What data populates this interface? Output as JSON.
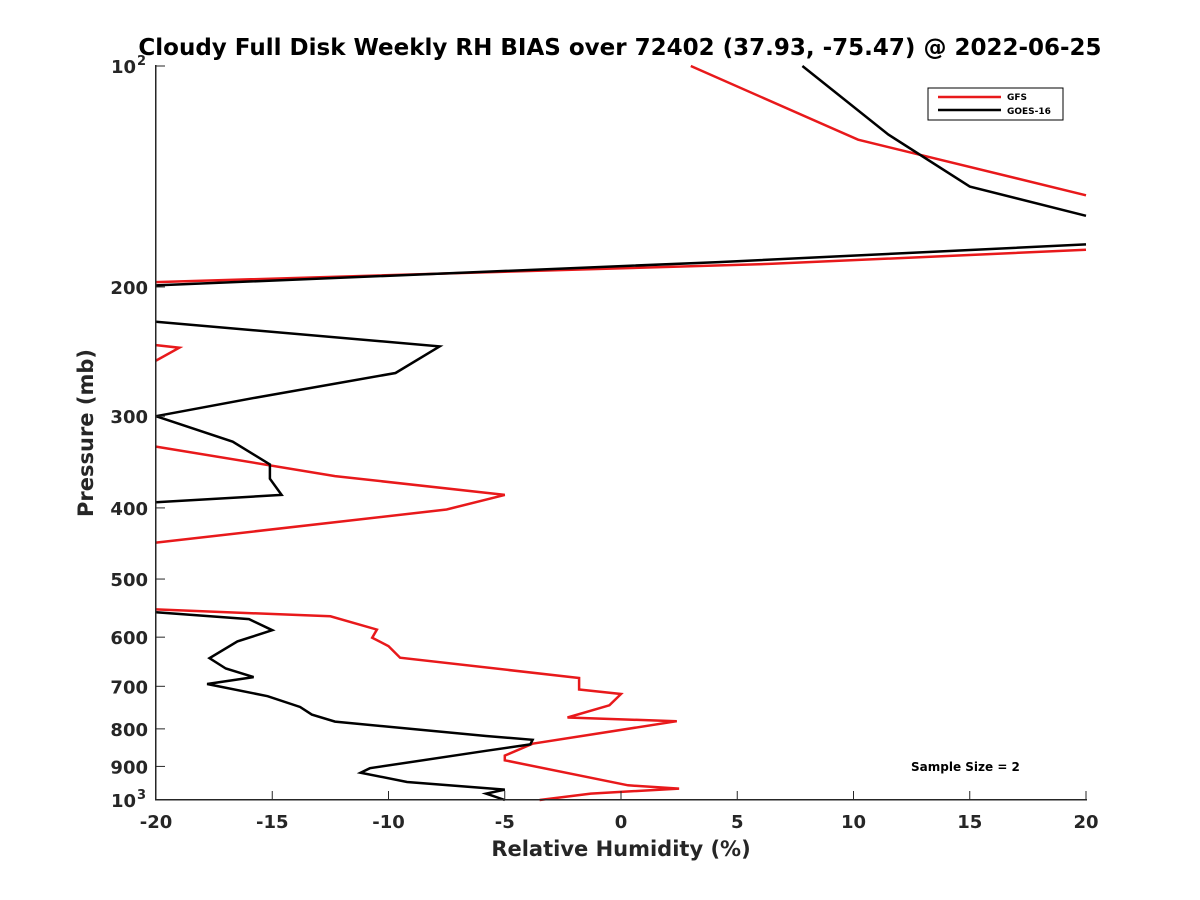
{
  "chart_data": {
    "type": "line",
    "title": "Cloudy Full Disk Weekly RH BIAS over 72402 (37.93, -75.47) @ 2022-06-25",
    "xlabel": "Relative Humidity (%)",
    "ylabel": "Pressure (mb)",
    "xlim": [
      -20,
      20
    ],
    "ylim": [
      100,
      1000
    ],
    "yscale": "log",
    "y_reversed": true,
    "x_ticks": [
      "-20",
      "-15",
      "-10",
      "-5",
      "0",
      "5",
      "10",
      "15",
      "20"
    ],
    "y_ticks": [
      {
        "value": 100,
        "base": "10",
        "exp": "2"
      },
      {
        "value": 200,
        "label": "200"
      },
      {
        "value": 300,
        "label": "300"
      },
      {
        "value": 400,
        "label": "400"
      },
      {
        "value": 500,
        "label": "500"
      },
      {
        "value": 600,
        "label": "600"
      },
      {
        "value": 700,
        "label": "700"
      },
      {
        "value": 800,
        "label": "800"
      },
      {
        "value": 900,
        "label": "900"
      },
      {
        "value": 1000,
        "base": "10",
        "exp": "3"
      }
    ],
    "legend_position": "top-right",
    "grid": false,
    "annotation": "Sample Size = 2",
    "series": [
      {
        "name": "GFS",
        "color": "#e8191b",
        "segments": [
          [
            [
              3,
              100
            ],
            [
              10.2,
              126
            ],
            [
              20,
              150
            ]
          ],
          [
            [
              20,
              178
            ],
            [
              6.5,
              186
            ],
            [
              -20,
              197
            ]
          ],
          [
            [
              -20,
              240
            ],
            [
              -19,
              242
            ],
            [
              -20,
              252
            ]
          ],
          [
            [
              -20,
              330
            ],
            [
              -12.3,
              362
            ],
            [
              -5,
              384
            ],
            [
              -7.5,
              402
            ],
            [
              -20,
              446
            ]
          ],
          [
            [
              -20,
              550
            ],
            [
              -12.5,
              562
            ],
            [
              -10.5,
              586
            ],
            [
              -10.7,
              601
            ],
            [
              -10,
              617
            ],
            [
              -9.5,
              640
            ],
            [
              -1.8,
              682
            ],
            [
              -1.8,
              707
            ],
            [
              0,
              717
            ],
            [
              -0.5,
              743
            ],
            [
              -2.3,
              772
            ],
            [
              2.4,
              781
            ],
            [
              -3.8,
              838
            ],
            [
              -5,
              870
            ],
            [
              -5,
              883
            ],
            [
              0.3,
              955
            ],
            [
              2.5,
              965
            ],
            [
              -1.3,
              980
            ],
            [
              -3.5,
              1000
            ]
          ]
        ]
      },
      {
        "name": "GOES-16",
        "color": "#000000",
        "segments": [
          [
            [
              7.8,
              100
            ],
            [
              11.5,
              124
            ],
            [
              15,
              146
            ],
            [
              20,
              160
            ]
          ],
          [
            [
              20,
              175
            ],
            [
              4.2,
              185
            ],
            [
              -20,
              199
            ]
          ],
          [
            [
              -20,
              223
            ],
            [
              -7.8,
              241
            ],
            [
              -9.7,
              262
            ],
            [
              -15.7,
              283
            ],
            [
              -20,
              300
            ]
          ],
          [
            [
              -20,
              300
            ],
            [
              -16.7,
              325
            ],
            [
              -15.1,
              349
            ],
            [
              -15.1,
              365
            ],
            [
              -14.6,
              384
            ],
            [
              -20,
              393
            ]
          ],
          [
            [
              -20,
              555
            ],
            [
              -16,
              567
            ],
            [
              -15,
              587
            ],
            [
              -16.5,
              608
            ],
            [
              -17.7,
              641
            ],
            [
              -17,
              662
            ],
            [
              -15.8,
              680
            ],
            [
              -17.8,
              695
            ],
            [
              -15.2,
              722
            ],
            [
              -13.8,
              747
            ],
            [
              -13.3,
              765
            ],
            [
              -12.3,
              782
            ],
            [
              -5.8,
              818
            ],
            [
              -3.8,
              828
            ],
            [
              -3.9,
              840
            ],
            [
              -5.8,
              857
            ],
            [
              -10.8,
              905
            ],
            [
              -11.2,
              918
            ],
            [
              -9.2,
              945
            ],
            [
              -5,
              968
            ],
            [
              -5.8,
              980
            ],
            [
              -5.6,
              985
            ],
            [
              -5,
              1000
            ]
          ]
        ]
      }
    ]
  }
}
